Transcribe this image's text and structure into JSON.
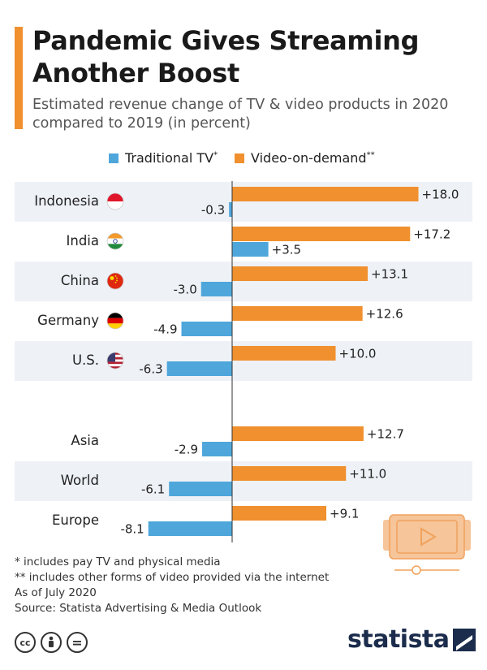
{
  "title": "Pandemic Gives Streaming Another Boost",
  "subtitle": "Estimated revenue change of TV & video products in 2020 compared to 2019 (in percent)",
  "colors": {
    "accent": "#f0902e",
    "traditional": "#4ea6db",
    "vod": "#f0902e",
    "row_shade": "#eef1f6"
  },
  "chart_data": {
    "type": "bar",
    "orientation": "horizontal",
    "title": "Pandemic Gives Streaming Another Boost",
    "categories": [
      "Indonesia",
      "India",
      "China",
      "Germany",
      "U.S.",
      "Asia",
      "World",
      "Europe"
    ],
    "series": [
      {
        "name": "Video-on-demand",
        "marker": "**",
        "values": [
          18.0,
          17.2,
          13.1,
          12.6,
          10.0,
          12.7,
          11.0,
          9.1
        ]
      },
      {
        "name": "Traditional TV",
        "marker": "*",
        "values": [
          -0.3,
          3.5,
          -3.0,
          -4.9,
          -6.3,
          -2.9,
          -6.1,
          -8.1
        ]
      }
    ],
    "legend_position": "top",
    "xlim": [
      -8.5,
      21.5
    ],
    "value_labels": {
      "vod": [
        "+18.0",
        "+17.2",
        "+13.1",
        "+12.6",
        "+10.0",
        "+12.7",
        "+11.0",
        "+9.1"
      ],
      "traditional": [
        "-0.3",
        "+3.5",
        "-3.0",
        "-4.9",
        "-6.3",
        "-2.9",
        "-6.1",
        "-8.1"
      ]
    },
    "flags": [
      "indonesia-flag-icon",
      "india-flag-icon",
      "china-flag-icon",
      "germany-flag-icon",
      "us-flag-icon",
      null,
      null,
      null
    ]
  },
  "footnotes": {
    "note1": "*   includes pay TV and physical media",
    "note2": "** includes other forms of video provided via the internet",
    "note3": "As of July 2020",
    "source": "Source: Statista Advertising & Media Outlook"
  },
  "logo": {
    "text": "statista"
  },
  "license_icons": [
    "cc-icon",
    "by-icon",
    "nd-icon"
  ],
  "license_glyphs": {
    "cc": "cc",
    "nd": "="
  }
}
